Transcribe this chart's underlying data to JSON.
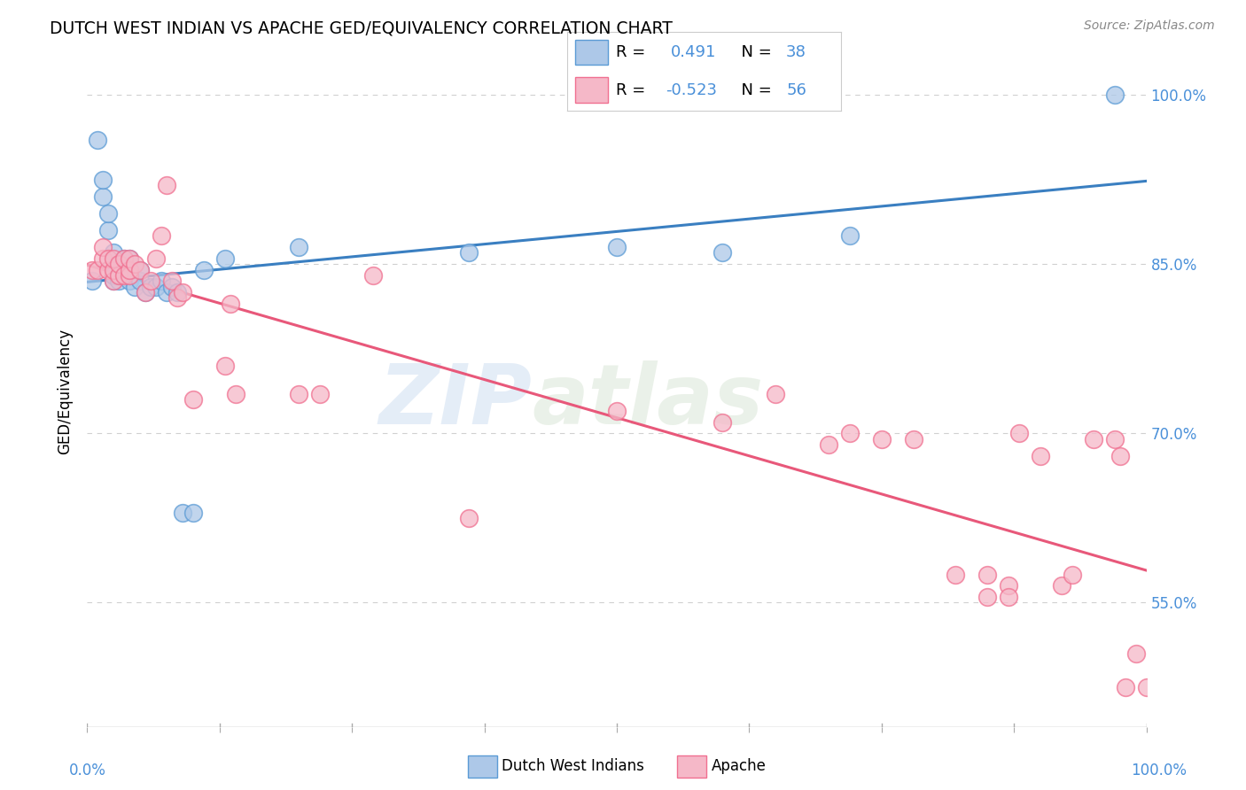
{
  "title": "DUTCH WEST INDIAN VS APACHE GED/EQUIVALENCY CORRELATION CHART",
  "source": "Source: ZipAtlas.com",
  "ylabel": "GED/Equivalency",
  "watermark_zip": "ZIP",
  "watermark_atlas": "atlas",
  "xmin": 0.0,
  "xmax": 1.0,
  "ymin": 0.44,
  "ymax": 1.035,
  "yticks": [
    0.55,
    0.7,
    0.85,
    1.0
  ],
  "ytick_labels": [
    "55.0%",
    "70.0%",
    "85.0%",
    "100.0%"
  ],
  "dutch_R": 0.491,
  "dutch_N": 38,
  "apache_R": -0.523,
  "apache_N": 56,
  "dutch_fill_color": "#adc8e8",
  "apache_fill_color": "#f5b8c8",
  "dutch_edge_color": "#5b9bd5",
  "apache_edge_color": "#f07090",
  "dutch_line_color": "#3a7fc1",
  "apache_line_color": "#e8587a",
  "label_color": "#4a90d9",
  "grid_color": "#d0d0d0",
  "dutch_scatter_x": [
    0.005,
    0.01,
    0.015,
    0.015,
    0.02,
    0.02,
    0.025,
    0.025,
    0.025,
    0.03,
    0.03,
    0.03,
    0.035,
    0.035,
    0.04,
    0.04,
    0.04,
    0.04,
    0.045,
    0.05,
    0.05,
    0.055,
    0.06,
    0.065,
    0.07,
    0.075,
    0.08,
    0.085,
    0.09,
    0.1,
    0.11,
    0.13,
    0.2,
    0.36,
    0.5,
    0.6,
    0.72,
    0.97
  ],
  "dutch_scatter_y": [
    0.835,
    0.96,
    0.91,
    0.925,
    0.88,
    0.895,
    0.835,
    0.84,
    0.86,
    0.835,
    0.84,
    0.85,
    0.845,
    0.855,
    0.835,
    0.84,
    0.845,
    0.855,
    0.83,
    0.835,
    0.845,
    0.825,
    0.83,
    0.83,
    0.835,
    0.825,
    0.83,
    0.825,
    0.63,
    0.63,
    0.845,
    0.855,
    0.865,
    0.86,
    0.865,
    0.86,
    0.875,
    1.0
  ],
  "apache_scatter_x": [
    0.005,
    0.01,
    0.015,
    0.015,
    0.02,
    0.02,
    0.025,
    0.025,
    0.025,
    0.03,
    0.03,
    0.035,
    0.035,
    0.04,
    0.04,
    0.04,
    0.045,
    0.05,
    0.055,
    0.06,
    0.065,
    0.07,
    0.075,
    0.08,
    0.085,
    0.09,
    0.1,
    0.13,
    0.135,
    0.14,
    0.2,
    0.22,
    0.27,
    0.36,
    0.5,
    0.6,
    0.65,
    0.7,
    0.72,
    0.75,
    0.78,
    0.82,
    0.85,
    0.87,
    0.88,
    0.9,
    0.92,
    0.93,
    0.95,
    0.97,
    0.975,
    0.98,
    0.99,
    1.0,
    0.85,
    0.87
  ],
  "apache_scatter_y": [
    0.845,
    0.845,
    0.855,
    0.865,
    0.845,
    0.855,
    0.835,
    0.845,
    0.855,
    0.84,
    0.85,
    0.84,
    0.855,
    0.84,
    0.845,
    0.855,
    0.85,
    0.845,
    0.825,
    0.835,
    0.855,
    0.875,
    0.92,
    0.835,
    0.82,
    0.825,
    0.73,
    0.76,
    0.815,
    0.735,
    0.735,
    0.735,
    0.84,
    0.625,
    0.72,
    0.71,
    0.735,
    0.69,
    0.7,
    0.695,
    0.695,
    0.575,
    0.575,
    0.565,
    0.7,
    0.68,
    0.565,
    0.575,
    0.695,
    0.695,
    0.68,
    0.475,
    0.505,
    0.475,
    0.555,
    0.555
  ]
}
